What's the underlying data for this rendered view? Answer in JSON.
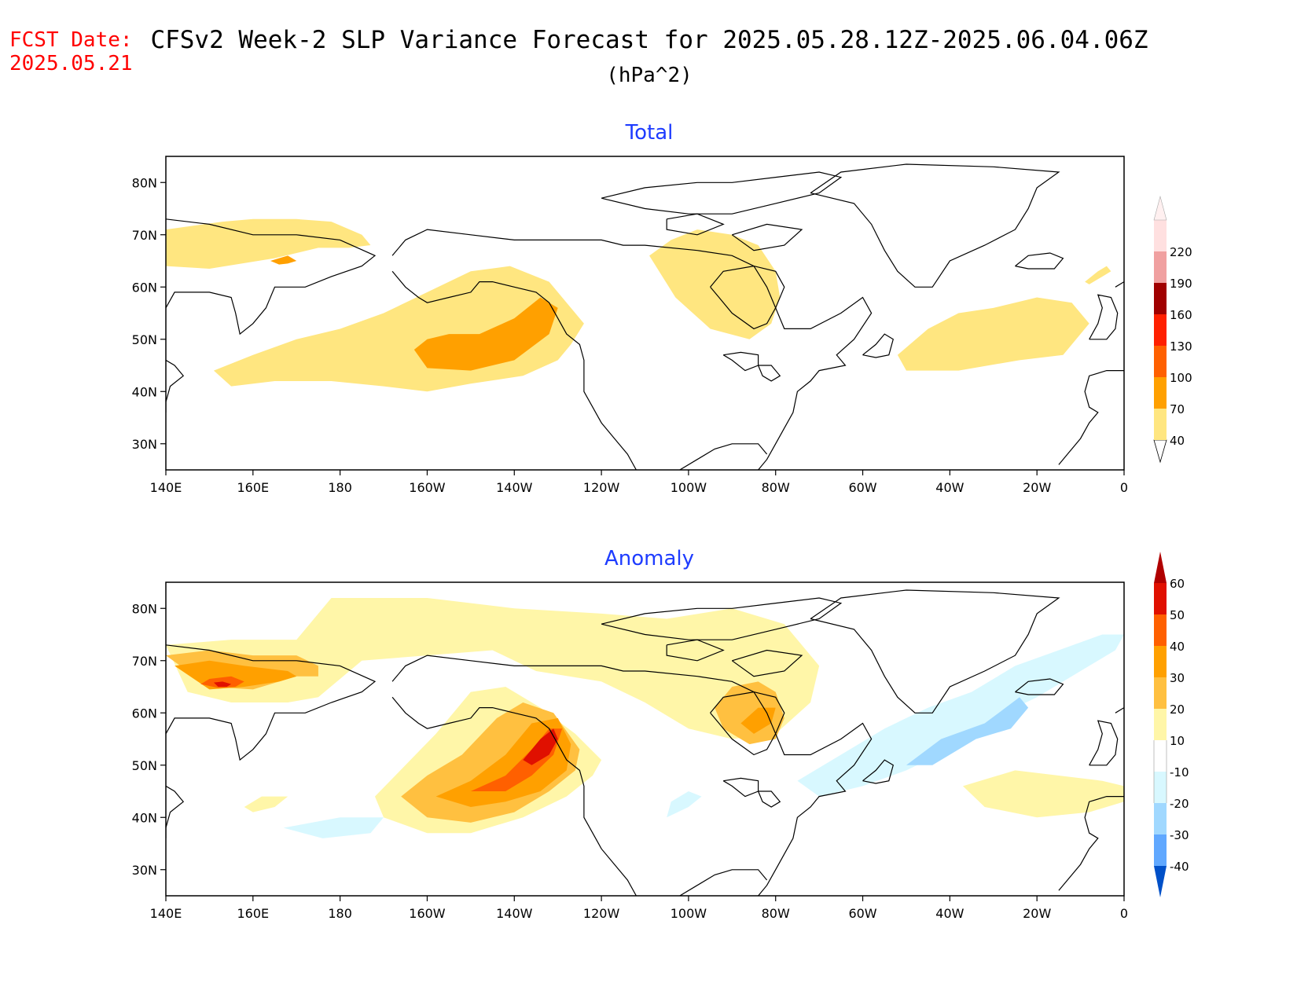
{
  "header": {
    "fcst_label": "FCST Date:",
    "fcst_date": "2025.05.21",
    "title": "CFSv2 Week-2 SLP Variance Forecast for 2025.05.28.12Z-2025.06.04.06Z",
    "units": "(hPa^2)"
  },
  "colors": {
    "title_text": "#000000",
    "fcst_text": "#ff0000",
    "panel_title": "#1e3cff",
    "coast": "#000000"
  },
  "chart_data": [
    {
      "type": "heatmap",
      "title": "Total",
      "xlabel": "",
      "ylabel": "",
      "x_ticks": [
        "140E",
        "160E",
        "180",
        "160W",
        "140W",
        "120W",
        "100W",
        "80W",
        "60W",
        "40W",
        "20W",
        "0"
      ],
      "x_tick_lons": [
        140,
        160,
        180,
        200,
        220,
        240,
        260,
        280,
        300,
        320,
        340,
        360
      ],
      "y_ticks": [
        "30N",
        "40N",
        "50N",
        "60N",
        "70N",
        "80N"
      ],
      "y_tick_lats": [
        30,
        40,
        50,
        60,
        70,
        80
      ],
      "lon_range": [
        140,
        360
      ],
      "lat_range": [
        25,
        85
      ],
      "colorbar": {
        "labels": [
          "40",
          "70",
          "100",
          "130",
          "160",
          "190",
          "220"
        ],
        "levels": [
          40,
          70,
          100,
          130,
          160,
          190,
          220
        ],
        "colors": [
          "#ffe680",
          "#ffa000",
          "#ff6000",
          "#ff2000",
          "#a00000",
          "#f0a0a0",
          "#ffe0e0"
        ]
      },
      "regions": [
        {
          "level": 40,
          "lon": [
            140,
            153,
            160,
            170,
            178,
            185,
            187,
            182,
            175,
            165,
            150,
            140
          ],
          "lat": [
            71,
            72.5,
            73,
            73,
            72.5,
            70,
            68,
            67.5,
            67.5,
            65.5,
            63.5,
            64
          ]
        },
        {
          "level": 70,
          "lon": [
            164,
            166,
            168,
            170,
            168,
            166,
            164
          ],
          "lat": [
            65,
            65.5,
            66,
            65,
            64.5,
            64.3,
            65
          ]
        },
        {
          "level": 40,
          "lon": [
            151,
            160,
            170,
            180,
            190,
            200,
            210,
            219,
            228,
            236,
            233,
            230,
            222,
            210,
            200,
            190,
            178,
            165,
            155,
            151
          ],
          "lat": [
            44,
            47,
            50,
            52,
            55,
            59,
            63,
            64,
            61,
            53,
            49,
            46,
            43,
            41.5,
            40,
            41,
            42,
            42,
            41,
            44
          ]
        },
        {
          "level": 70,
          "lon": [
            197,
            200,
            205,
            212,
            220,
            226,
            230,
            228,
            220,
            210,
            200,
            197
          ],
          "lat": [
            48,
            50,
            51,
            51,
            54,
            58,
            56,
            51,
            46,
            44,
            44.5,
            48
          ]
        },
        {
          "level": 40,
          "lon": [
            251,
            256,
            262,
            270,
            276,
            280,
            281,
            279,
            274,
            265,
            257,
            251
          ],
          "lat": [
            66,
            69,
            71,
            70,
            68,
            63,
            58,
            53,
            50,
            52,
            58,
            66
          ]
        },
        {
          "level": 40,
          "lon": [
            308,
            315,
            322,
            330,
            340,
            348,
            352,
            346,
            336,
            322,
            310,
            308
          ],
          "lat": [
            47,
            52,
            55,
            56,
            58,
            57,
            53,
            47,
            46,
            44,
            44,
            47
          ]
        },
        {
          "level": 40,
          "lon": [
            351,
            354,
            356,
            357,
            355,
            352,
            351
          ],
          "lat": [
            61,
            63,
            64,
            63,
            62,
            60.5,
            61
          ]
        }
      ]
    },
    {
      "type": "heatmap",
      "title": "Anomaly",
      "xlabel": "",
      "ylabel": "",
      "x_ticks": [
        "140E",
        "160E",
        "180",
        "160W",
        "140W",
        "120W",
        "100W",
        "80W",
        "60W",
        "40W",
        "20W",
        "0"
      ],
      "x_tick_lons": [
        140,
        160,
        180,
        200,
        220,
        240,
        260,
        280,
        300,
        320,
        340,
        360
      ],
      "y_ticks": [
        "30N",
        "40N",
        "50N",
        "60N",
        "70N",
        "80N"
      ],
      "y_tick_lats": [
        30,
        40,
        50,
        60,
        70,
        80
      ],
      "lon_range": [
        140,
        360
      ],
      "lat_range": [
        25,
        85
      ],
      "colorbar": {
        "labels": [
          "60",
          "50",
          "40",
          "30",
          "20",
          "10",
          "-10",
          "-20",
          "-30",
          "-40"
        ],
        "levels": [
          60,
          50,
          40,
          30,
          20,
          10,
          -10,
          -20,
          -30,
          -40
        ],
        "colors": [
          "#b00000",
          "#e01000",
          "#ff6000",
          "#ffa000",
          "#ffc040",
          "#fff6a8",
          "#ffffff",
          "#d8f8ff",
          "#a0d8ff",
          "#60a8ff",
          "#2070e0",
          "#0050c8"
        ]
      },
      "regions": [
        {
          "level": 10,
          "lon": [
            140,
            155,
            170,
            178,
            200,
            220,
            240,
            255,
            270,
            282,
            290,
            288,
            280,
            270,
            260,
            250,
            240,
            225,
            215,
            200,
            185,
            175,
            168,
            155,
            145,
            140
          ],
          "lat": [
            73,
            74,
            74,
            82,
            82,
            80,
            79,
            78,
            80,
            77,
            69,
            62,
            56,
            55,
            57,
            62,
            66,
            68,
            72,
            71,
            70,
            63,
            62,
            62,
            64,
            73
          ]
        },
        {
          "level": 20,
          "lon": [
            140,
            150,
            160,
            170,
            175,
            175,
            170,
            160,
            150,
            140
          ],
          "lat": [
            71,
            72,
            71,
            71,
            69,
            67,
            67,
            64.5,
            65,
            71
          ]
        },
        {
          "level": 30,
          "lon": [
            142,
            150,
            158,
            168,
            170,
            166,
            158,
            150,
            142
          ],
          "lat": [
            69,
            70,
            69,
            68,
            67,
            66,
            65,
            64.5,
            69
          ]
        },
        {
          "level": 40,
          "lon": [
            150,
            155,
            158,
            156,
            152,
            148,
            150
          ],
          "lat": [
            66.5,
            67,
            66,
            65,
            64.8,
            65.5,
            66.5
          ]
        },
        {
          "level": 50,
          "lon": [
            151,
            153,
            155,
            154,
            152,
            151
          ],
          "lat": [
            65.8,
            66,
            65.5,
            65,
            65,
            65.8
          ]
        },
        {
          "level": 10,
          "lon": [
            188,
            195,
            202,
            210,
            218,
            226,
            234,
            240,
            238,
            232,
            222,
            210,
            200,
            190,
            188
          ],
          "lat": [
            44,
            50,
            56,
            64,
            65,
            61,
            56,
            51,
            48,
            44,
            40,
            37,
            37,
            40,
            44
          ]
        },
        {
          "level": 20,
          "lon": [
            194,
            200,
            208,
            216,
            222,
            229,
            235,
            234,
            228,
            220,
            210,
            200,
            194
          ],
          "lat": [
            44,
            48,
            52,
            59,
            62,
            60,
            53,
            49,
            45,
            41,
            39,
            40,
            44
          ]
        },
        {
          "level": 30,
          "lon": [
            202,
            210,
            218,
            224,
            230,
            233,
            232,
            226,
            218,
            210,
            202
          ],
          "lat": [
            44,
            47,
            52,
            58,
            59,
            54,
            49,
            45,
            43,
            42,
            44
          ]
        },
        {
          "level": 40,
          "lon": [
            210,
            218,
            224,
            228,
            231,
            229,
            224,
            218,
            210
          ],
          "lat": [
            45,
            48,
            53,
            57,
            57,
            52,
            48,
            45,
            45
          ]
        },
        {
          "level": 50,
          "lon": [
            222,
            226,
            229,
            230,
            228,
            224,
            222
          ],
          "lat": [
            51,
            55,
            57,
            55,
            52,
            50,
            51
          ]
        },
        {
          "level": 20,
          "lon": [
            266,
            270,
            276,
            280,
            282,
            280,
            274,
            268,
            266
          ],
          "lat": [
            61,
            65,
            66,
            64,
            59,
            55,
            54,
            57,
            61
          ]
        },
        {
          "level": 30,
          "lon": [
            272,
            276,
            280,
            279,
            275,
            272
          ],
          "lat": [
            58,
            61,
            61,
            58,
            56,
            58
          ]
        },
        {
          "level": 10,
          "lon": [
            323,
            335,
            345,
            355,
            360,
            360,
            352,
            340,
            328,
            323
          ],
          "lat": [
            46,
            49,
            48,
            47,
            46,
            43,
            41,
            40,
            42,
            46
          ]
        },
        {
          "level": 10,
          "lon": [
            158,
            162,
            168,
            165,
            160,
            158
          ],
          "lat": [
            42,
            44,
            44,
            42,
            41,
            42
          ]
        },
        {
          "level": -10,
          "lon": [
            285,
            295,
            305,
            315,
            325,
            335,
            345,
            355,
            360,
            358,
            350,
            340,
            330,
            320,
            310,
            300,
            290,
            285
          ],
          "lat": [
            47,
            52,
            57,
            61,
            64,
            69,
            72,
            75,
            75,
            72,
            68,
            63,
            59,
            53,
            49,
            46,
            44,
            47
          ]
        },
        {
          "level": -20,
          "lon": [
            310,
            318,
            328,
            336,
            338,
            334,
            326,
            316,
            310
          ],
          "lat": [
            50,
            55,
            58,
            63,
            61,
            57,
            55,
            50,
            50
          ]
        },
        {
          "level": -10,
          "lon": [
            167,
            180,
            190,
            187,
            176,
            167
          ],
          "lat": [
            38,
            40,
            40,
            37,
            36,
            38
          ]
        },
        {
          "level": -10,
          "lon": [
            255,
            260,
            263,
            260,
            256,
            255
          ],
          "lat": [
            40,
            42,
            44,
            45,
            43,
            40
          ]
        }
      ]
    }
  ]
}
